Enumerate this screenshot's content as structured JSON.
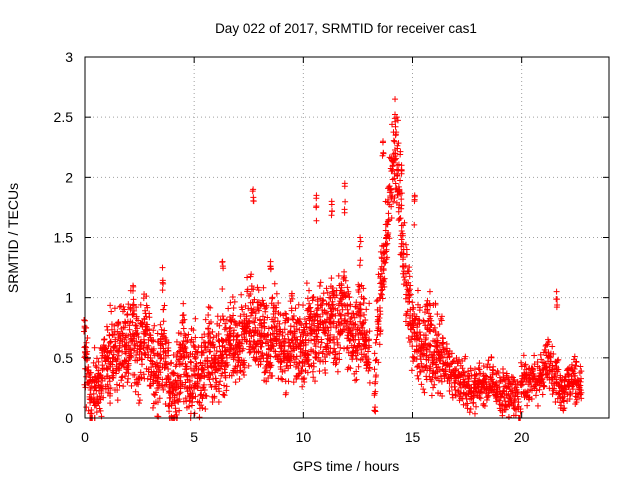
{
  "chart_data": {
    "type": "scatter",
    "title": "Day 022 of 2017, SRMTID for receiver cas1",
    "xlabel": "GPS time / hours",
    "ylabel": "SRMTID / TECUs",
    "xlim": [
      0,
      24
    ],
    "ylim": [
      0,
      3
    ],
    "xticks": [
      0,
      5,
      10,
      15,
      20
    ],
    "xtick_labels": [
      "0",
      "5",
      "10",
      "15",
      "20"
    ],
    "yticks": [
      0,
      0.5,
      1,
      1.5,
      2,
      2.5,
      3
    ],
    "ytick_labels": [
      "0",
      "0.5",
      "1",
      "1.5",
      "2",
      "2.5",
      "3"
    ],
    "grid": true,
    "marker": "+",
    "color": "#ff0000",
    "series": [
      {
        "name": "cas1",
        "x": [
          0.0,
          0.1,
          0.2,
          0.3,
          0.4,
          0.5,
          0.6,
          0.7,
          0.8,
          0.9,
          1.0,
          1.1,
          1.2,
          1.3,
          1.4,
          1.5,
          1.6,
          1.7,
          1.8,
          1.9,
          2.0,
          2.1,
          2.2,
          2.3,
          2.4,
          2.5,
          2.6,
          2.7,
          2.8,
          2.9,
          3.0,
          3.1,
          3.2,
          3.3,
          3.4,
          3.5,
          3.6,
          3.7,
          3.8,
          3.9,
          4.0,
          4.1,
          4.2,
          4.3,
          4.4,
          4.5,
          4.6,
          4.7,
          4.8,
          4.9,
          5.0,
          5.1,
          5.2,
          5.3,
          5.4,
          5.5,
          5.6,
          5.7,
          5.8,
          5.9,
          6.0,
          6.1,
          6.2,
          6.3,
          6.4,
          6.5,
          6.6,
          6.7,
          6.8,
          6.9,
          7.0,
          7.1,
          7.2,
          7.3,
          7.4,
          7.5,
          7.6,
          7.7,
          7.8,
          7.9,
          8.0,
          8.1,
          8.2,
          8.3,
          8.4,
          8.5,
          8.6,
          8.7,
          8.8,
          8.9,
          9.0,
          9.1,
          9.2,
          9.3,
          9.4,
          9.5,
          9.6,
          9.7,
          9.8,
          9.9,
          10.0,
          10.1,
          10.2,
          10.3,
          10.4,
          10.5,
          10.6,
          10.7,
          10.8,
          10.9,
          11.0,
          11.1,
          11.2,
          11.3,
          11.4,
          11.5,
          11.6,
          11.7,
          11.8,
          11.9,
          12.0,
          12.1,
          12.2,
          12.3,
          12.4,
          12.5,
          12.6,
          12.7,
          12.8,
          12.9,
          13.0,
          13.3,
          13.4,
          13.5,
          13.6,
          13.7,
          13.8,
          13.9,
          14.0,
          14.1,
          14.2,
          14.3,
          14.4,
          14.5,
          14.6,
          14.7,
          14.8,
          14.9,
          15.0,
          15.1,
          15.2,
          15.3,
          15.4,
          15.5,
          15.6,
          15.7,
          15.8,
          15.9,
          16.0,
          16.1,
          16.2,
          16.3,
          16.4,
          16.5,
          16.6,
          16.7,
          16.8,
          16.9,
          17.0,
          17.1,
          17.2,
          17.3,
          17.4,
          17.5,
          17.6,
          17.7,
          17.8,
          17.9,
          18.0,
          18.1,
          18.2,
          18.3,
          18.4,
          18.5,
          18.6,
          18.7,
          18.8,
          18.9,
          19.0,
          19.1,
          19.2,
          19.3,
          19.4,
          19.5,
          19.6,
          19.7,
          19.8,
          19.9,
          20.0,
          20.1,
          20.2,
          20.3,
          20.4,
          20.5,
          20.6,
          20.7,
          20.8,
          20.9,
          21.0,
          21.1,
          21.2,
          21.3,
          21.4,
          21.5,
          21.6,
          21.7,
          21.8,
          21.9,
          22.0,
          22.1,
          22.2,
          22.3,
          22.4,
          22.5,
          22.6,
          22.7
        ],
        "y": [
          0.55,
          0.4,
          0.3,
          0.15,
          0.2,
          0.25,
          0.3,
          0.35,
          0.4,
          0.5,
          0.5,
          0.45,
          0.55,
          0.5,
          0.6,
          0.55,
          0.6,
          0.55,
          0.65,
          0.6,
          0.6,
          0.65,
          0.7,
          0.6,
          0.55,
          0.5,
          0.6,
          0.65,
          0.7,
          0.6,
          0.5,
          0.45,
          0.35,
          0.3,
          0.4,
          0.5,
          0.55,
          0.45,
          0.35,
          0.25,
          0.2,
          0.15,
          0.25,
          0.35,
          0.45,
          0.5,
          0.45,
          0.35,
          0.3,
          0.35,
          0.4,
          0.45,
          0.4,
          0.35,
          0.4,
          0.45,
          0.5,
          0.55,
          0.5,
          0.45,
          0.4,
          0.5,
          0.55,
          0.6,
          0.55,
          0.5,
          0.55,
          0.6,
          0.65,
          0.6,
          0.55,
          0.6,
          0.65,
          0.7,
          0.75,
          0.8,
          0.85,
          0.8,
          0.75,
          0.7,
          0.7,
          0.75,
          0.7,
          0.65,
          0.6,
          0.65,
          0.7,
          0.75,
          0.7,
          0.65,
          0.6,
          0.55,
          0.5,
          0.55,
          0.6,
          0.65,
          0.7,
          0.65,
          0.6,
          0.55,
          0.6,
          0.65,
          0.7,
          0.75,
          0.7,
          0.65,
          0.7,
          0.75,
          0.8,
          0.75,
          0.7,
          0.75,
          0.8,
          0.85,
          0.8,
          0.75,
          0.8,
          0.85,
          0.9,
          0.85,
          0.8,
          0.75,
          0.7,
          0.65,
          0.7,
          0.75,
          0.8,
          0.75,
          0.7,
          0.65,
          0.6,
          0.3,
          0.8,
          1.0,
          1.2,
          1.3,
          1.5,
          1.7,
          1.9,
          2.1,
          2.2,
          2.1,
          1.9,
          1.6,
          1.4,
          1.2,
          1.0,
          0.9,
          0.8,
          0.7,
          0.65,
          0.6,
          0.55,
          0.6,
          0.65,
          0.6,
          0.55,
          0.5,
          0.55,
          0.6,
          0.55,
          0.5,
          0.45,
          0.4,
          0.45,
          0.4,
          0.38,
          0.35,
          0.33,
          0.35,
          0.3,
          0.28,
          0.3,
          0.28,
          0.25,
          0.25,
          0.22,
          0.25,
          0.28,
          0.3,
          0.28,
          0.25,
          0.28,
          0.3,
          0.32,
          0.3,
          0.28,
          0.25,
          0.22,
          0.2,
          0.22,
          0.25,
          0.2,
          0.22,
          0.2,
          0.18,
          0.2,
          0.0,
          0.3,
          0.35,
          0.3,
          0.28,
          0.3,
          0.33,
          0.35,
          0.3,
          0.32,
          0.35,
          0.4,
          0.45,
          0.5,
          0.45,
          0.4,
          0.35,
          0.3,
          0.28,
          0.25,
          0.22,
          0.25,
          0.28,
          0.3,
          0.32,
          0.35,
          0.3,
          0.28,
          0.3
        ]
      }
    ],
    "peaks": [
      {
        "x": 0.05,
        "y": 0.75
      },
      {
        "x": 2.2,
        "y": 1.1
      },
      {
        "x": 3.55,
        "y": 1.25
      },
      {
        "x": 4.5,
        "y": 0.95
      },
      {
        "x": 6.3,
        "y": 1.3
      },
      {
        "x": 7.7,
        "y": 1.9
      },
      {
        "x": 8.5,
        "y": 1.3
      },
      {
        "x": 10.6,
        "y": 1.85
      },
      {
        "x": 11.3,
        "y": 1.8
      },
      {
        "x": 11.9,
        "y": 1.95
      },
      {
        "x": 12.6,
        "y": 1.5
      },
      {
        "x": 13.65,
        "y": 2.3
      },
      {
        "x": 14.2,
        "y": 2.65
      },
      {
        "x": 14.5,
        "y": 2.1
      },
      {
        "x": 15.1,
        "y": 1.85
      },
      {
        "x": 15.8,
        "y": 1.05
      },
      {
        "x": 21.6,
        "y": 1.05
      },
      {
        "x": 22.5,
        "y": 0.47
      }
    ]
  }
}
